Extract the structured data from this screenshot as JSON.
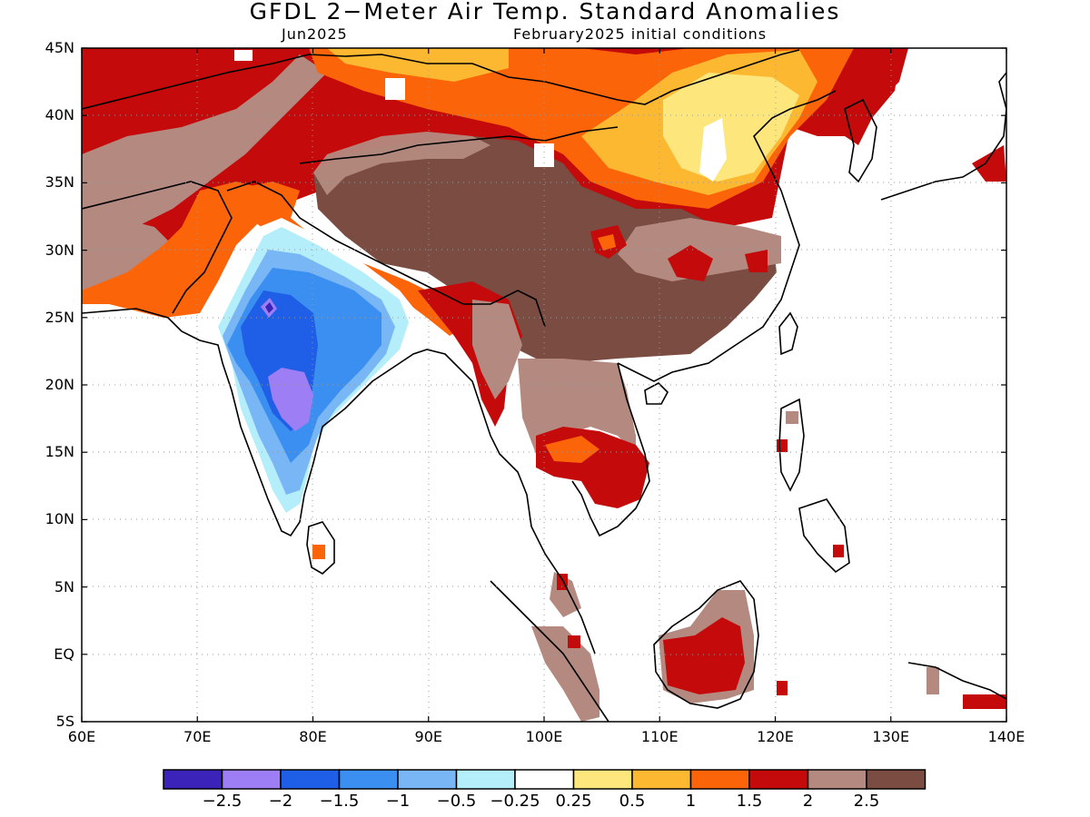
{
  "map": {
    "title": "GFDL 2−Meter Air Temp. Standard Anomalies",
    "subtitle_left": "Jun2025",
    "subtitle_right": "February2025 initial conditions",
    "y_ticks": [
      "45N",
      "40N",
      "35N",
      "30N",
      "25N",
      "20N",
      "15N",
      "10N",
      "5N",
      "EQ",
      "5S"
    ],
    "x_ticks": [
      "60E",
      "70E",
      "80E",
      "90E",
      "100E",
      "110E",
      "120E",
      "130E",
      "140E"
    ],
    "lon_range": [
      60,
      140
    ],
    "lat_range": [
      -5,
      45
    ],
    "grid": "dotted"
  },
  "colorbar": {
    "colors": [
      "#3b22b8",
      "#9d7ef5",
      "#1f5ee6",
      "#3a8ff0",
      "#78b6f5",
      "#b4eefa",
      "#ffffff",
      "#fde67c",
      "#fdb832",
      "#fb6408",
      "#c40a0a",
      "#b48a80",
      "#7a4c42"
    ],
    "labels": [
      "−2.5",
      "−2",
      "−1.5",
      "−1",
      "−0.5",
      "−0.25",
      "0.25",
      "0.5",
      "1",
      "1.5",
      "2",
      "2.5"
    ]
  }
}
